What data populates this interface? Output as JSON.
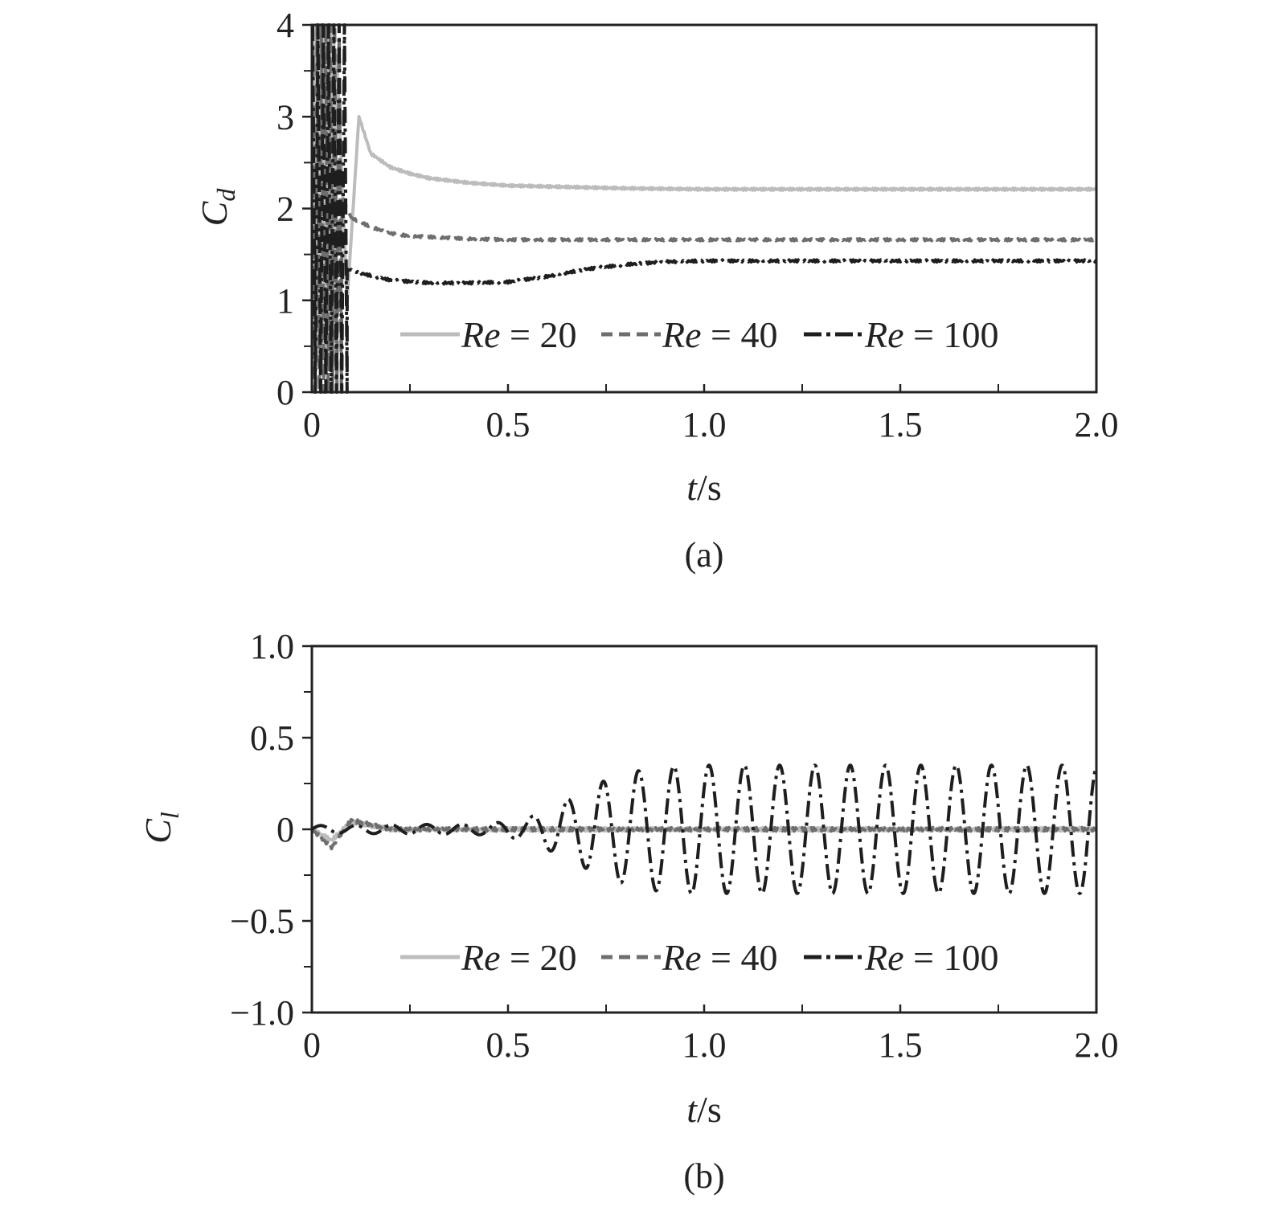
{
  "chart_data": [
    {
      "type": "line",
      "panel_label": "(a)",
      "xlabel_var": "t",
      "xlabel_unit": "/s",
      "ylabel_main": "C",
      "ylabel_sub": "d",
      "xlim": [
        0,
        2.0
      ],
      "ylim": [
        0,
        4
      ],
      "x_ticks": [
        "0",
        "0.5",
        "1.0",
        "1.5",
        "2.0"
      ],
      "y_ticks": [
        "0",
        "1",
        "2",
        "3",
        "4"
      ],
      "legend_position": "bottom-center",
      "series": [
        {
          "name_var": "Re",
          "name_rest": " = 20",
          "color": "#bcbcbc",
          "dash": "solid",
          "x": [
            0.0,
            0.03,
            0.06,
            0.09,
            0.12,
            0.15,
            0.2,
            0.25,
            0.3,
            0.4,
            0.5,
            0.6,
            0.8,
            1.0,
            1.2,
            1.5,
            1.8,
            2.0
          ],
          "y": [
            4.0,
            0.0,
            4.0,
            1.0,
            3.0,
            2.6,
            2.45,
            2.38,
            2.33,
            2.28,
            2.25,
            2.24,
            2.22,
            2.21,
            2.21,
            2.21,
            2.21,
            2.21
          ]
        },
        {
          "name_var": "Re",
          "name_rest": " = 40",
          "color": "#6e6e6e",
          "dash": "dashed",
          "x": [
            0.0,
            0.02,
            0.04,
            0.06,
            0.08,
            0.1,
            0.15,
            0.2,
            0.25,
            0.3,
            0.4,
            0.5,
            0.7,
            1.0,
            1.5,
            2.0
          ],
          "y": [
            4.0,
            0.0,
            4.0,
            1.5,
            2.1,
            1.9,
            1.8,
            1.73,
            1.7,
            1.69,
            1.67,
            1.66,
            1.66,
            1.66,
            1.66,
            1.66
          ]
        },
        {
          "name_var": "Re",
          "name_rest": " = 100",
          "color": "#1e1e1e",
          "dash": "dashdot",
          "x": [
            0.0,
            0.01,
            0.02,
            0.03,
            0.05,
            0.08,
            0.12,
            0.2,
            0.3,
            0.4,
            0.5,
            0.6,
            0.7,
            0.8,
            0.9,
            1.0,
            1.5,
            2.0
          ],
          "y": [
            4.0,
            0.0,
            4.0,
            0.5,
            1.7,
            1.35,
            1.3,
            1.22,
            1.19,
            1.19,
            1.2,
            1.26,
            1.34,
            1.39,
            1.42,
            1.43,
            1.43,
            1.43
          ]
        }
      ]
    },
    {
      "type": "line",
      "panel_label": "(b)",
      "xlabel_var": "t",
      "xlabel_unit": "/s",
      "ylabel_main": "C",
      "ylabel_sub": "l",
      "xlim": [
        0,
        2.0
      ],
      "ylim": [
        -1.0,
        1.0
      ],
      "x_ticks": [
        "0",
        "0.5",
        "1.0",
        "1.5",
        "2.0"
      ],
      "y_ticks": [
        "−1.0",
        "−0.5",
        "0",
        "0.5",
        "1.0"
      ],
      "legend_position": "bottom-center",
      "series": [
        {
          "name_var": "Re",
          "name_rest": " = 20",
          "color": "#bcbcbc",
          "dash": "solid",
          "x": [
            0.0,
            0.05,
            0.1,
            0.2,
            0.5,
            1.0,
            1.5,
            2.0
          ],
          "y": [
            0.0,
            -0.06,
            0.04,
            0.0,
            0.0,
            0.0,
            0.0,
            0.0
          ]
        },
        {
          "name_var": "Re",
          "name_rest": " = 40",
          "color": "#6e6e6e",
          "dash": "dashed",
          "x": [
            0.0,
            0.05,
            0.1,
            0.2,
            0.5,
            1.0,
            1.5,
            2.0
          ],
          "y": [
            0.0,
            -0.1,
            0.05,
            0.0,
            0.0,
            0.0,
            0.0,
            0.0
          ]
        },
        {
          "name_var": "Re",
          "name_rest": " = 100",
          "color": "#1e1e1e",
          "dash": "dashdot",
          "amplitude_envelope_x": [
            0.0,
            0.45,
            0.55,
            0.65,
            0.75,
            0.85,
            0.95,
            1.0,
            1.5,
            2.0
          ],
          "amplitude_envelope_y": [
            0.02,
            0.03,
            0.06,
            0.16,
            0.27,
            0.33,
            0.35,
            0.35,
            0.35,
            0.35
          ],
          "oscillation_period_s": 0.09
        }
      ]
    }
  ]
}
